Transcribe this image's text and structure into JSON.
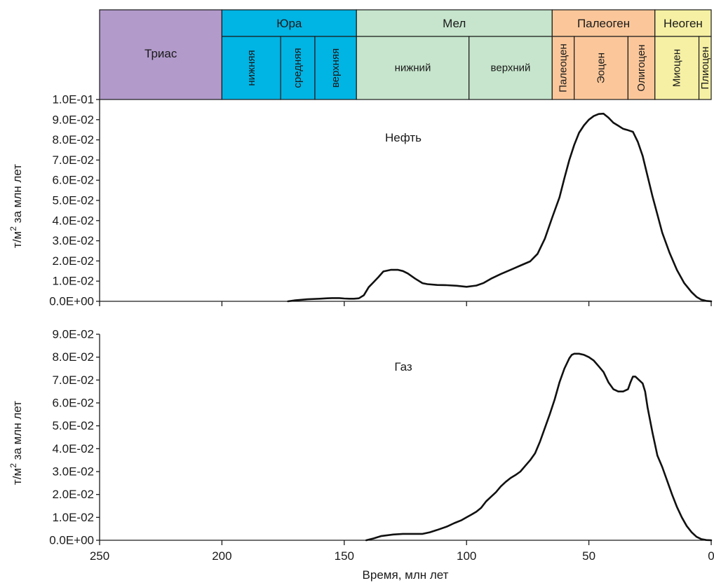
{
  "stratigraphy": {
    "periods": [
      {
        "name": "Триас",
        "start": 250,
        "end": 200,
        "color": "#b29acb"
      },
      {
        "name": "Юра",
        "start": 200,
        "end": 145,
        "color": "#00b4e4"
      },
      {
        "name": "Мел",
        "start": 145,
        "end": 65,
        "color": "#c6e5cc"
      },
      {
        "name": "Палеоген",
        "start": 65,
        "end": 23,
        "color": "#fbc79a"
      },
      {
        "name": "Неоген",
        "start": 23,
        "end": 0,
        "color": "#f6f0a4"
      }
    ],
    "epochs": [
      {
        "name": "нижняя",
        "start": 200,
        "end": 176,
        "color": "#00b4e4",
        "vertical": true
      },
      {
        "name": "средняя",
        "start": 176,
        "end": 162,
        "color": "#00b4e4",
        "vertical": true
      },
      {
        "name": "верхняя",
        "start": 162,
        "end": 145,
        "color": "#00b4e4",
        "vertical": true
      },
      {
        "name": "нижний",
        "start": 145,
        "end": 99,
        "color": "#c6e5cc",
        "vertical": false
      },
      {
        "name": "верхний",
        "start": 99,
        "end": 65,
        "color": "#c6e5cc",
        "vertical": false
      },
      {
        "name": "Палеоцен",
        "start": 65,
        "end": 56,
        "color": "#fbc79a",
        "vertical": true
      },
      {
        "name": "Эоцен",
        "start": 56,
        "end": 34,
        "color": "#fbc79a",
        "vertical": true
      },
      {
        "name": "Олигоцен",
        "start": 34,
        "end": 23,
        "color": "#fbc79a",
        "vertical": true
      },
      {
        "name": "Миоцен",
        "start": 23,
        "end": 5,
        "color": "#f6f0a4",
        "vertical": true
      },
      {
        "name": "Плиоцен",
        "start": 5,
        "end": 0,
        "color": "#f6f0a4",
        "vertical": true
      }
    ]
  },
  "chart_data": [
    {
      "type": "line",
      "annotation": "Нефть",
      "ylabel_base": "т/м",
      "ylabel_sup": "2",
      "ylabel_rest": " за млн лет",
      "xlim": [
        250,
        0
      ],
      "ylim": [
        0,
        0.1
      ],
      "yticks": [
        "0.0E+00",
        "1.0E-02",
        "2.0E-02",
        "3.0E-02",
        "4.0E-02",
        "5.0E-02",
        "6.0E-02",
        "7.0E-02",
        "8.0E-02",
        "9.0E-02",
        "1.0E-01"
      ],
      "x": [
        173,
        170,
        165,
        160,
        157,
        155,
        152,
        150,
        148,
        146,
        144,
        142,
        140,
        138,
        136,
        134,
        131,
        128,
        126,
        124,
        121,
        118,
        116,
        112,
        108,
        104,
        100,
        96,
        93,
        90,
        86,
        82,
        78,
        74,
        71,
        68,
        65,
        62,
        60,
        58,
        56,
        54,
        52,
        50,
        48,
        46,
        44,
        42,
        40,
        38,
        36,
        34,
        32,
        30,
        28,
        26,
        24,
        22,
        20,
        17,
        14,
        11,
        8,
        6,
        4,
        2,
        0
      ],
      "y": [
        0.0,
        0.0005,
        0.001,
        0.0013,
        0.0015,
        0.0016,
        0.0016,
        0.0014,
        0.0013,
        0.0013,
        0.0015,
        0.003,
        0.007,
        0.0095,
        0.012,
        0.0148,
        0.0156,
        0.0156,
        0.015,
        0.0138,
        0.0112,
        0.009,
        0.0085,
        0.0081,
        0.008,
        0.0077,
        0.0072,
        0.0078,
        0.0091,
        0.0112,
        0.0135,
        0.0156,
        0.0177,
        0.0198,
        0.0235,
        0.031,
        0.0415,
        0.0515,
        0.061,
        0.07,
        0.0775,
        0.0835,
        0.0872,
        0.09,
        0.0918,
        0.0928,
        0.093,
        0.091,
        0.0885,
        0.087,
        0.0855,
        0.0848,
        0.084,
        0.079,
        0.072,
        0.062,
        0.052,
        0.043,
        0.034,
        0.024,
        0.0155,
        0.009,
        0.0045,
        0.0022,
        0.0008,
        0.0002,
        0.0
      ]
    },
    {
      "type": "line",
      "annotation": "Газ",
      "ylabel_base": "т/м",
      "ylabel_sup": "2",
      "ylabel_rest": " за млн лет",
      "xlabel": "Время, млн лет",
      "xlim": [
        250,
        0
      ],
      "ylim": [
        0,
        0.09
      ],
      "xticks": [
        "250",
        "200",
        "150",
        "100",
        "50",
        "0"
      ],
      "yticks": [
        "0.0E+00",
        "1.0E-02",
        "2.0E-02",
        "3.0E-02",
        "4.0E-02",
        "5.0E-02",
        "6.0E-02",
        "7.0E-02",
        "8.0E-02",
        "9.0E-02"
      ],
      "x": [
        141,
        138,
        135,
        130,
        126,
        122,
        118,
        115,
        112,
        108,
        105,
        102,
        100,
        98,
        96,
        94,
        92,
        90,
        88,
        86,
        84,
        82,
        80,
        78,
        76,
        74,
        72,
        70,
        68,
        66,
        64,
        62,
        60,
        58,
        57,
        56,
        55,
        54,
        52,
        50,
        48,
        46,
        44,
        42,
        40,
        38,
        36,
        34,
        33,
        32,
        31,
        30,
        28,
        27,
        26,
        24,
        22,
        20,
        18,
        16,
        14,
        12,
        10,
        8,
        6,
        4,
        2,
        0
      ],
      "y": [
        0.0,
        0.0008,
        0.0018,
        0.0025,
        0.0028,
        0.0028,
        0.0028,
        0.0035,
        0.0045,
        0.006,
        0.0075,
        0.0088,
        0.01,
        0.0112,
        0.0125,
        0.0142,
        0.017,
        0.019,
        0.021,
        0.0235,
        0.0255,
        0.0272,
        0.0285,
        0.03,
        0.0325,
        0.035,
        0.038,
        0.043,
        0.049,
        0.055,
        0.0615,
        0.069,
        0.075,
        0.0795,
        0.081,
        0.0815,
        0.0815,
        0.0815,
        0.081,
        0.08,
        0.0785,
        0.076,
        0.0735,
        0.069,
        0.066,
        0.065,
        0.065,
        0.066,
        0.069,
        0.0715,
        0.0715,
        0.0705,
        0.0685,
        0.065,
        0.058,
        0.047,
        0.037,
        0.032,
        0.026,
        0.02,
        0.0145,
        0.01,
        0.0062,
        0.0035,
        0.0015,
        0.0005,
        0.0001,
        0.0
      ]
    }
  ]
}
